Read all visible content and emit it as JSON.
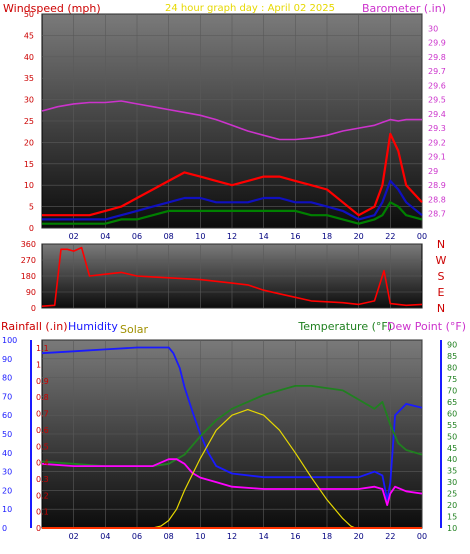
{
  "chart_data": [
    {
      "type": "line",
      "title": "24 hour graph day : April 02 2025",
      "ylabel_left": "Windspeed (mph)",
      "ylabel_right": "Barometer (.in)",
      "x_ticks": [
        "02",
        "04",
        "06",
        "08",
        "10",
        "12",
        "14",
        "16",
        "18",
        "20",
        "22",
        "00"
      ],
      "xlim": [
        0,
        24
      ],
      "ylim_left": [
        0,
        50
      ],
      "yticks_left": [
        "0",
        "5",
        "10",
        "15",
        "20",
        "25",
        "30",
        "35",
        "40",
        "45",
        "50"
      ],
      "ylim_right": [
        28.6,
        30.1
      ],
      "yticks_right": [
        "28.7",
        "28.8",
        "28.9",
        "29",
        "29.1",
        "29.2",
        "29.3",
        "29.4",
        "29.5",
        "29.6",
        "29.7",
        "29.8",
        "29.9",
        "30"
      ],
      "colors": {
        "gust": "#ff0000",
        "wind": "#1010c0",
        "avg": "#008000",
        "barometer": "#cc33cc"
      },
      "series": [
        {
          "key": "barometer",
          "axis": "right",
          "x": [
            0,
            1,
            2,
            3,
            4,
            5,
            6,
            7,
            8,
            9,
            10,
            11,
            12,
            13,
            14,
            15,
            16,
            17,
            18,
            19,
            20,
            21,
            21.5,
            22,
            22.5,
            23,
            24
          ],
          "values": [
            29.42,
            29.45,
            29.47,
            29.48,
            29.48,
            29.49,
            29.47,
            29.45,
            29.43,
            29.41,
            29.39,
            29.36,
            29.32,
            29.28,
            29.25,
            29.22,
            29.22,
            29.23,
            29.25,
            29.28,
            29.3,
            29.32,
            29.34,
            29.36,
            29.35,
            29.36,
            29.36
          ]
        },
        {
          "key": "gust",
          "axis": "left",
          "x": [
            0,
            1,
            2,
            3,
            4,
            5,
            6,
            7,
            8,
            9,
            10,
            11,
            12,
            13,
            14,
            15,
            16,
            17,
            18,
            19,
            20,
            21,
            21.5,
            22,
            22.5,
            23,
            24
          ],
          "values": [
            3,
            3,
            3,
            3,
            4,
            5,
            7,
            9,
            11,
            13,
            12,
            11,
            10,
            11,
            12,
            12,
            11,
            10,
            9,
            6,
            3,
            5,
            10,
            22,
            18,
            10,
            6
          ]
        },
        {
          "key": "wind",
          "axis": "left",
          "x": [
            0,
            1,
            2,
            3,
            4,
            5,
            6,
            7,
            8,
            9,
            10,
            11,
            12,
            13,
            14,
            15,
            16,
            17,
            18,
            19,
            20,
            21,
            21.5,
            22,
            22.5,
            23,
            24
          ],
          "values": [
            2,
            2,
            2,
            2,
            2,
            3,
            4,
            5,
            6,
            7,
            7,
            6,
            6,
            6,
            7,
            7,
            6,
            6,
            5,
            4,
            2,
            3,
            6,
            11,
            9,
            6,
            3
          ]
        },
        {
          "key": "avg",
          "axis": "left",
          "x": [
            0,
            1,
            2,
            3,
            4,
            5,
            6,
            7,
            8,
            9,
            10,
            11,
            12,
            13,
            14,
            15,
            16,
            17,
            18,
            19,
            20,
            21,
            21.5,
            22,
            22.5,
            23,
            24
          ],
          "values": [
            1,
            1,
            1,
            1,
            1,
            2,
            2,
            3,
            4,
            4,
            4,
            4,
            4,
            4,
            4,
            4,
            4,
            3,
            3,
            2,
            1,
            2,
            3,
            6,
            5,
            3,
            2
          ]
        }
      ]
    },
    {
      "type": "line",
      "ylim": [
        0,
        360
      ],
      "yticks": [
        "0",
        "90",
        "180",
        "270",
        "360"
      ],
      "direction_labels": [
        "N",
        "W",
        "S",
        "E",
        "N"
      ],
      "x_ticks": [],
      "series": [
        {
          "key": "direction",
          "x": [
            0,
            0.8,
            1.2,
            1.6,
            2.0,
            2.5,
            3,
            4,
            5,
            6,
            7,
            8,
            9,
            10,
            11,
            12,
            13,
            14,
            15,
            16,
            17,
            18,
            19,
            20,
            21,
            21.6,
            22,
            23,
            24
          ],
          "values": [
            10,
            15,
            330,
            330,
            320,
            340,
            180,
            190,
            200,
            180,
            175,
            170,
            165,
            160,
            150,
            140,
            130,
            100,
            80,
            60,
            40,
            35,
            30,
            20,
            40,
            210,
            25,
            15,
            20
          ]
        }
      ]
    },
    {
      "type": "line",
      "ylabel_left_1": "Rainfall (.in)",
      "ylabel_left_2": "Humidity",
      "ylabel_left_3": "Solar",
      "ylabel_right_1": "Temperature (°F)",
      "ylabel_right_2": "Dew Point (°F)",
      "x_ticks": [
        "02",
        "04",
        "06",
        "08",
        "10",
        "12",
        "14",
        "16",
        "18",
        "20",
        "22",
        "00"
      ],
      "xlim": [
        0,
        24
      ],
      "yticks_left_outer": [
        "0",
        "10",
        "20",
        "30",
        "40",
        "50",
        "60",
        "70",
        "80",
        "90",
        "100"
      ],
      "yticks_left_inner": [
        "0",
        "0.1",
        "0.2",
        "0.3",
        "0.4",
        "0.5",
        "0.6",
        "0.7",
        "0.8",
        "0.9",
        "1",
        "1.1"
      ],
      "yticks_right": [
        "10",
        "15",
        "20",
        "25",
        "30",
        "35",
        "40",
        "45",
        "50",
        "55",
        "60",
        "65",
        "70",
        "75",
        "80",
        "85",
        "90"
      ],
      "ylim_humidity": [
        0,
        100
      ],
      "ylim_temp": [
        10,
        92
      ],
      "colors": {
        "humidity": "#1a1aff",
        "temperature": "#208020",
        "dewpoint": "#ff00ff",
        "solar": "#e6d800",
        "rain": "#ff3300"
      },
      "series": [
        {
          "key": "humidity",
          "axis": "left_outer",
          "x": [
            0,
            2,
            4,
            6,
            7,
            8,
            8.3,
            8.7,
            9,
            9.5,
            10,
            10.5,
            11,
            12,
            14,
            16,
            18,
            20,
            21,
            21.5,
            21.8,
            22,
            22.3,
            23,
            24
          ],
          "values": [
            93,
            94,
            95,
            96,
            96,
            96,
            93,
            85,
            75,
            62,
            50,
            40,
            33,
            29,
            27,
            27,
            27,
            27,
            30,
            28,
            15,
            24,
            60,
            66,
            64
          ]
        },
        {
          "key": "temperature",
          "axis": "right",
          "x": [
            0,
            2,
            4,
            6,
            7,
            8,
            9,
            10,
            11,
            12,
            13,
            14,
            15,
            16,
            17,
            18,
            19,
            20,
            21,
            21.5,
            22,
            22.5,
            23,
            24
          ],
          "values": [
            39,
            38,
            37,
            37,
            37,
            38,
            42,
            50,
            57,
            62,
            65,
            68,
            70,
            72,
            72,
            71,
            70,
            66,
            62,
            65,
            55,
            47,
            44,
            42
          ]
        },
        {
          "key": "dewpoint",
          "axis": "right",
          "x": [
            0,
            2,
            4,
            6,
            7,
            8,
            8.5,
            9,
            9.5,
            10,
            11,
            12,
            14,
            16,
            18,
            20,
            21,
            21.5,
            21.8,
            22,
            22.3,
            23,
            24
          ],
          "values": [
            38,
            37,
            37,
            37,
            37,
            40,
            40,
            38,
            34,
            32,
            30,
            28,
            27,
            27,
            27,
            27,
            28,
            27,
            20,
            25,
            28,
            26,
            25
          ]
        },
        {
          "key": "solar",
          "axis": "left_outer",
          "x": [
            0,
            7,
            7.5,
            8,
            8.5,
            9,
            10,
            11,
            12,
            13,
            14,
            15,
            16,
            17,
            18,
            19,
            19.5,
            19.8,
            20,
            24
          ],
          "values": [
            0,
            0,
            1,
            4,
            10,
            20,
            37,
            52,
            60,
            63,
            60,
            52,
            40,
            27,
            15,
            5,
            1,
            0,
            0,
            0
          ]
        },
        {
          "key": "rain",
          "axis": "left_inner",
          "x": [
            0,
            24
          ],
          "values": [
            0,
            0
          ]
        }
      ]
    }
  ]
}
